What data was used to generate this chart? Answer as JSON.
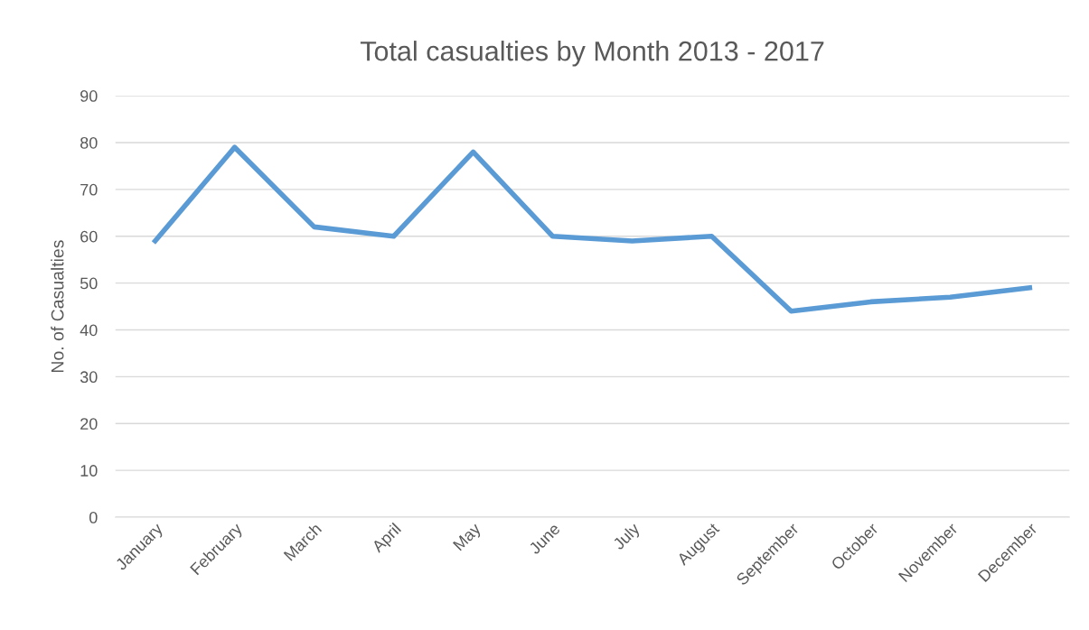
{
  "chart_data": {
    "type": "line",
    "title": "Total casualties by Month 2013 - 2017",
    "ylabel": "No. of Casualties",
    "categories": [
      "January",
      "February",
      "March",
      "April",
      "May",
      "June",
      "July",
      "August",
      "September",
      "October",
      "November",
      "December"
    ],
    "series": [
      {
        "color": "#5b9bd5",
        "values": [
          59,
          79,
          62,
          60,
          78,
          60,
          59,
          60,
          44,
          46,
          47,
          49
        ]
      }
    ],
    "ylim": [
      0,
      90
    ],
    "yticks": [
      0,
      10,
      20,
      30,
      40,
      50,
      60,
      70,
      80,
      90
    ],
    "grid": "y",
    "legend": false,
    "marker": "none",
    "line_style": "solid"
  }
}
